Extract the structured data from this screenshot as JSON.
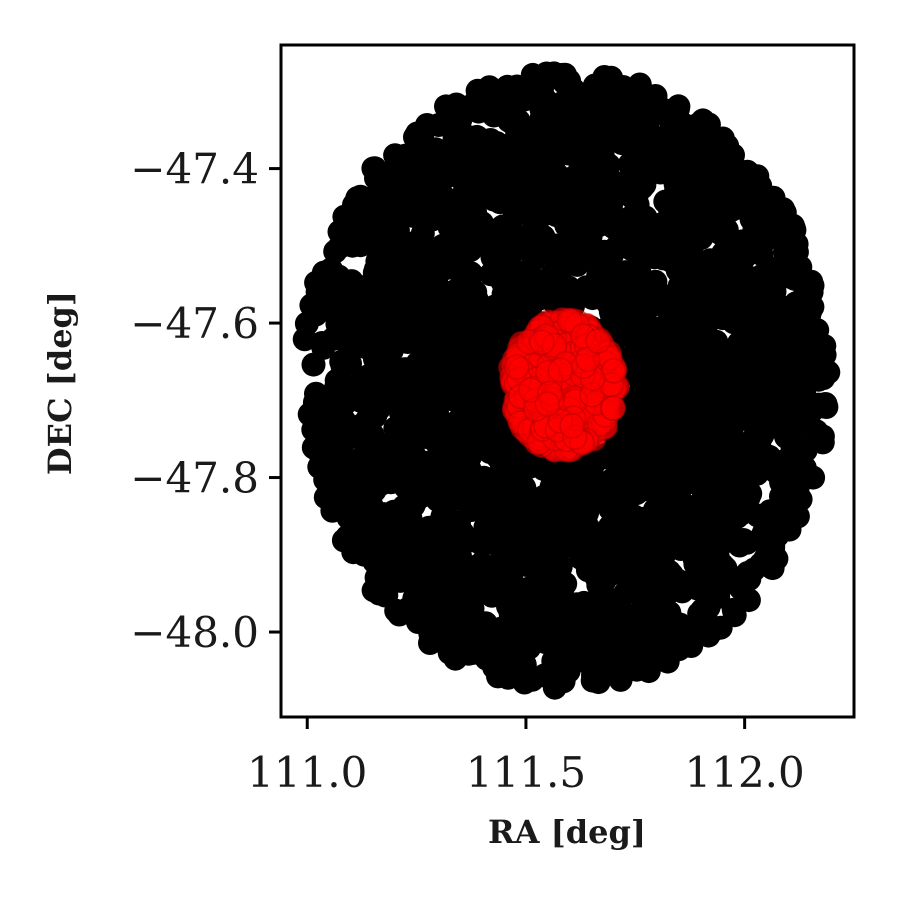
{
  "chart_data": {
    "type": "scatter",
    "title": "",
    "xlabel": "RA [deg]",
    "ylabel": "DEC [deg]",
    "xlim": [
      110.94,
      112.25
    ],
    "ylim": [
      -48.11,
      -47.24
    ],
    "grid": false,
    "legend": "none",
    "x_ticks": [
      111.0,
      111.5,
      112.0
    ],
    "x_tick_labels": [
      "111.0",
      "111.5",
      "112.0"
    ],
    "y_ticks": [
      -47.4,
      -47.6,
      -47.8,
      -48.0
    ],
    "y_tick_labels": [
      "−47.4",
      "−47.6",
      "−47.8",
      "−48.0"
    ],
    "series": [
      {
        "color": "#000000",
        "marker": "o",
        "alpha": 1.0,
        "region": "ellipse",
        "center": {
          "x": 111.59,
          "y": -47.673
        },
        "semi_axes": {
          "x": 0.62,
          "y": 0.412
        },
        "points": 2400
      },
      {
        "color": "#ff0000",
        "marker": "o",
        "alpha": 0.55,
        "region": "ellipse",
        "center": {
          "x": 111.585,
          "y": -47.68
        },
        "semi_axes": {
          "x": 0.128,
          "y": 0.088
        },
        "points": 500
      }
    ]
  }
}
